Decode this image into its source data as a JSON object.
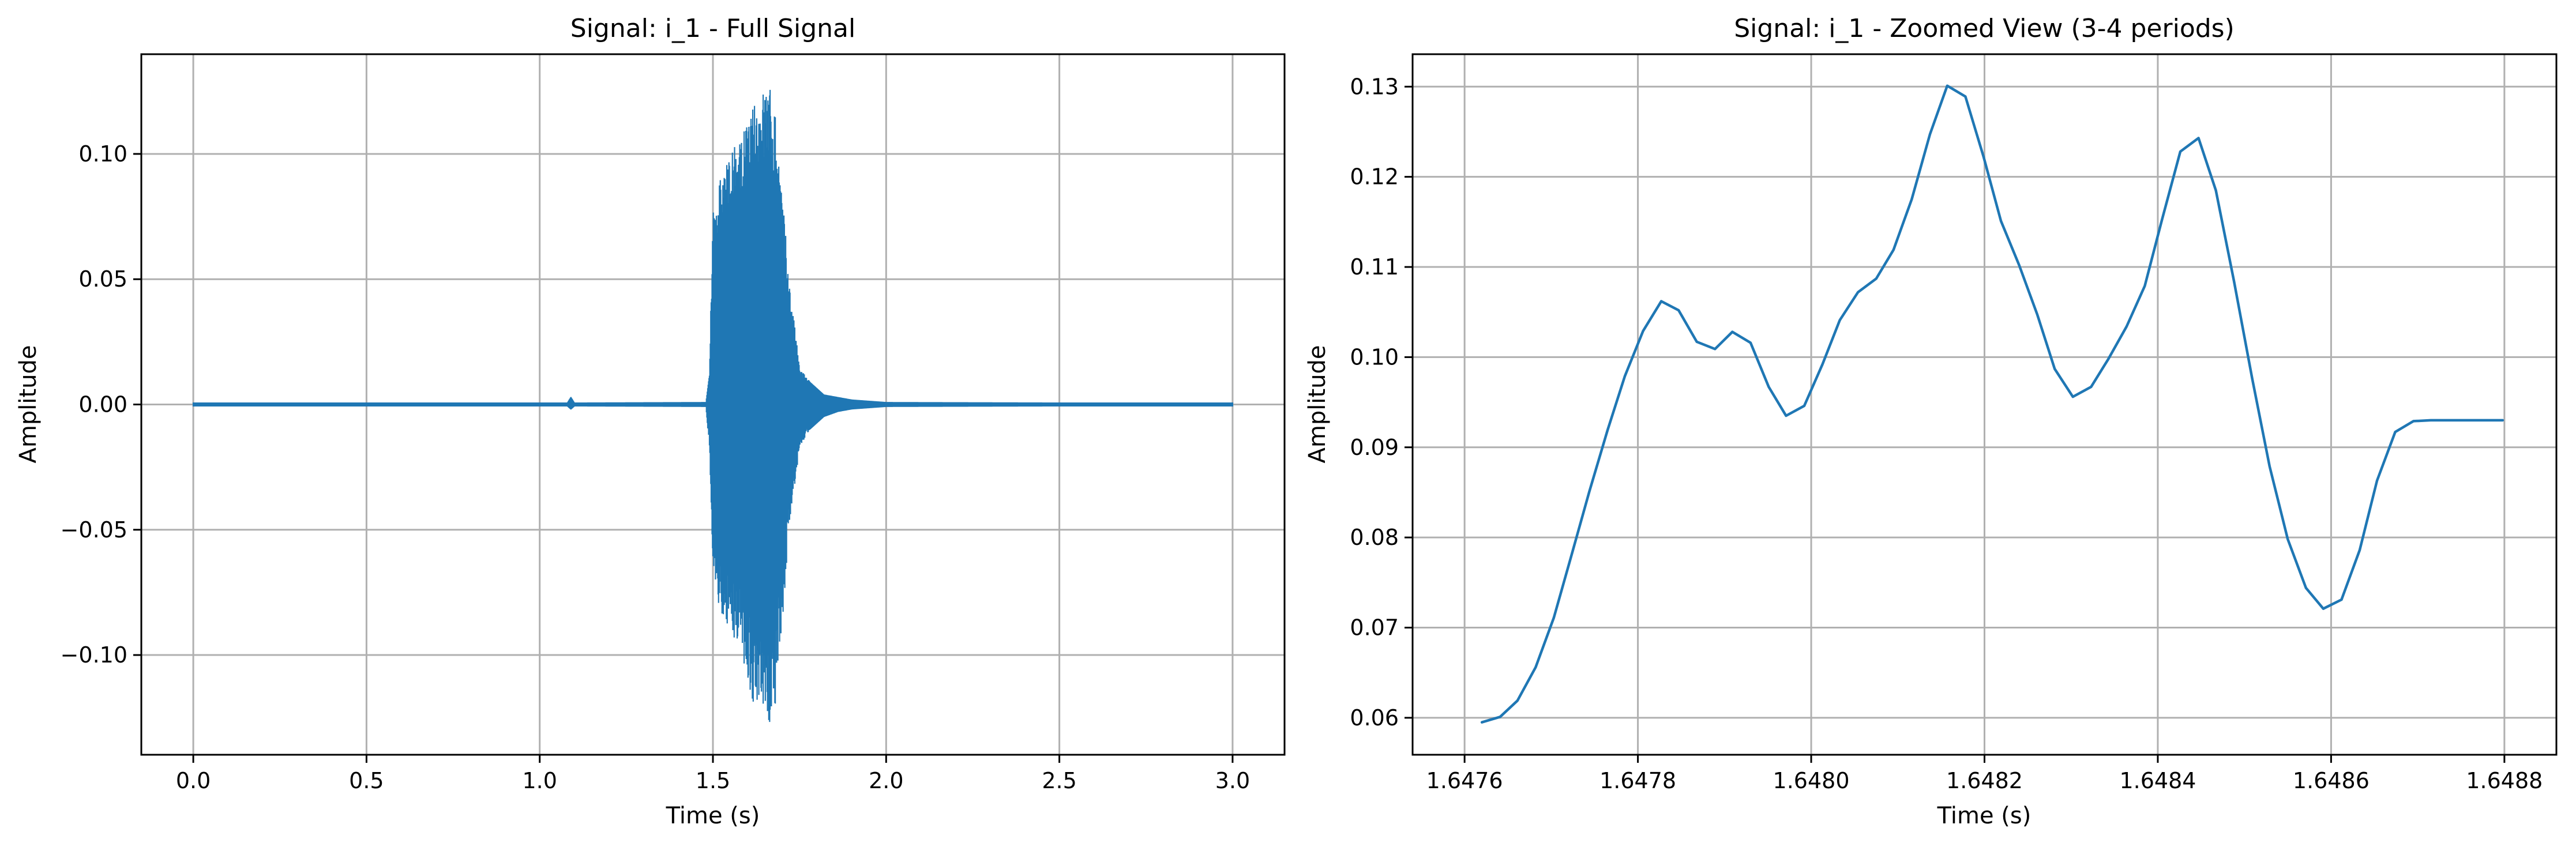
{
  "chart_data": [
    {
      "type": "line",
      "title": "Signal: i_1 - Full Signal",
      "xlabel": "Time (s)",
      "ylabel": "Amplitude",
      "xlim": [
        -0.15,
        3.15
      ],
      "ylim": [
        -0.1398,
        0.1398
      ],
      "grid": true,
      "x_ticks": [
        0.0,
        0.5,
        1.0,
        1.5,
        2.0,
        2.5,
        3.0
      ],
      "x_tick_labels": [
        "0.0",
        "0.5",
        "1.0",
        "1.5",
        "2.0",
        "2.5",
        "3.0"
      ],
      "y_ticks": [
        -0.1,
        -0.05,
        0.0,
        0.05,
        0.1
      ],
      "y_tick_labels": [
        "−0.10",
        "−0.05",
        "0.00",
        "0.05",
        "0.10"
      ],
      "series": [
        {
          "color": "#1f77b4",
          "envelope": {
            "x": [
              0.0,
              1.08,
              1.09,
              1.1,
              1.48,
              1.49,
              1.5,
              1.52,
              1.55,
              1.58,
              1.6,
              1.62,
              1.64,
              1.66,
              1.68,
              1.7,
              1.72,
              1.75,
              1.78,
              1.82,
              1.86,
              1.9,
              2.0,
              2.5,
              3.0
            ],
            "y_max": [
              0.0008,
              0.0008,
              0.003,
              0.0008,
              0.001,
              0.012,
              0.08,
              0.09,
              0.1,
              0.107,
              0.113,
              0.12,
              0.125,
              0.13,
              0.118,
              0.085,
              0.05,
              0.015,
              0.009,
              0.004,
              0.003,
              0.002,
              0.001,
              0.0008,
              0.0008
            ],
            "y_min": [
              -0.0008,
              -0.0008,
              -0.002,
              -0.0008,
              -0.001,
              -0.018,
              -0.065,
              -0.085,
              -0.09,
              -0.098,
              -0.11,
              -0.122,
              -0.128,
              -0.13,
              -0.12,
              -0.088,
              -0.05,
              -0.018,
              -0.01,
              -0.005,
              -0.003,
              -0.002,
              -0.001,
              -0.0008,
              -0.0008
            ]
          }
        }
      ]
    },
    {
      "type": "line",
      "title": "Signal: i_1 - Zoomed View (3-4 periods)",
      "xlabel": "Time (s)",
      "ylabel": "Amplitude",
      "xlim": [
        1.64754,
        1.64886
      ],
      "ylim": [
        0.0559,
        0.1336
      ],
      "grid": true,
      "x_ticks": [
        1.6476,
        1.6478,
        1.648,
        1.6482,
        1.6484,
        1.6486,
        1.6488
      ],
      "x_tick_labels": [
        "1.6476",
        "1.6478",
        "1.6480",
        "1.6482",
        "1.6484",
        "1.6486",
        "1.6488"
      ],
      "y_ticks": [
        0.06,
        0.07,
        0.08,
        0.09,
        0.1,
        0.11,
        0.12,
        0.13
      ],
      "y_tick_labels": [
        "0.06",
        "0.07",
        "0.08",
        "0.09",
        "0.10",
        "0.11",
        "0.12",
        "0.13"
      ],
      "series": [
        {
          "color": "#1f77b4",
          "x": [
            1.64762,
            1.647641,
            1.647661,
            1.647682,
            1.647703,
            1.647723,
            1.647744,
            1.647765,
            1.647785,
            1.647806,
            1.647827,
            1.647847,
            1.647868,
            1.647889,
            1.647909,
            1.64793,
            1.647951,
            1.647971,
            1.647992,
            1.648013,
            1.648033,
            1.648054,
            1.648075,
            1.648095,
            1.648116,
            1.648137,
            1.648157,
            1.648178,
            1.648199,
            1.648219,
            1.64824,
            1.648261,
            1.648281,
            1.648302,
            1.648323,
            1.648343,
            1.648364,
            1.648385,
            1.648405,
            1.648426,
            1.648447,
            1.648467,
            1.648488,
            1.648509,
            1.648529,
            1.64855,
            1.648571,
            1.648591,
            1.648612,
            1.648633,
            1.648653,
            1.648674,
            1.648695,
            1.648715,
            1.648736,
            1.648757,
            1.648777,
            1.648798
          ],
          "y": [
            0.0595,
            0.0601,
            0.0619,
            0.0656,
            0.0711,
            0.0779,
            0.0851,
            0.0919,
            0.0979,
            0.1029,
            0.1062,
            0.1052,
            0.1017,
            0.1009,
            0.1028,
            0.1016,
            0.0967,
            0.0935,
            0.0946,
            0.0992,
            0.1041,
            0.1072,
            0.1087,
            0.1119,
            0.1175,
            0.1247,
            0.1301,
            0.1289,
            0.1222,
            0.1151,
            0.1102,
            0.1047,
            0.0987,
            0.0956,
            0.0967,
            0.0998,
            0.1034,
            0.1079,
            0.1153,
            0.1228,
            0.1243,
            0.1185,
            0.1084,
            0.0976,
            0.0879,
            0.0798,
            0.0744,
            0.0721,
            0.0731,
            0.0786,
            0.0863,
            0.0917,
            0.0929,
            0.093,
            0.093,
            0.093,
            0.093,
            0.093
          ]
        }
      ]
    }
  ]
}
